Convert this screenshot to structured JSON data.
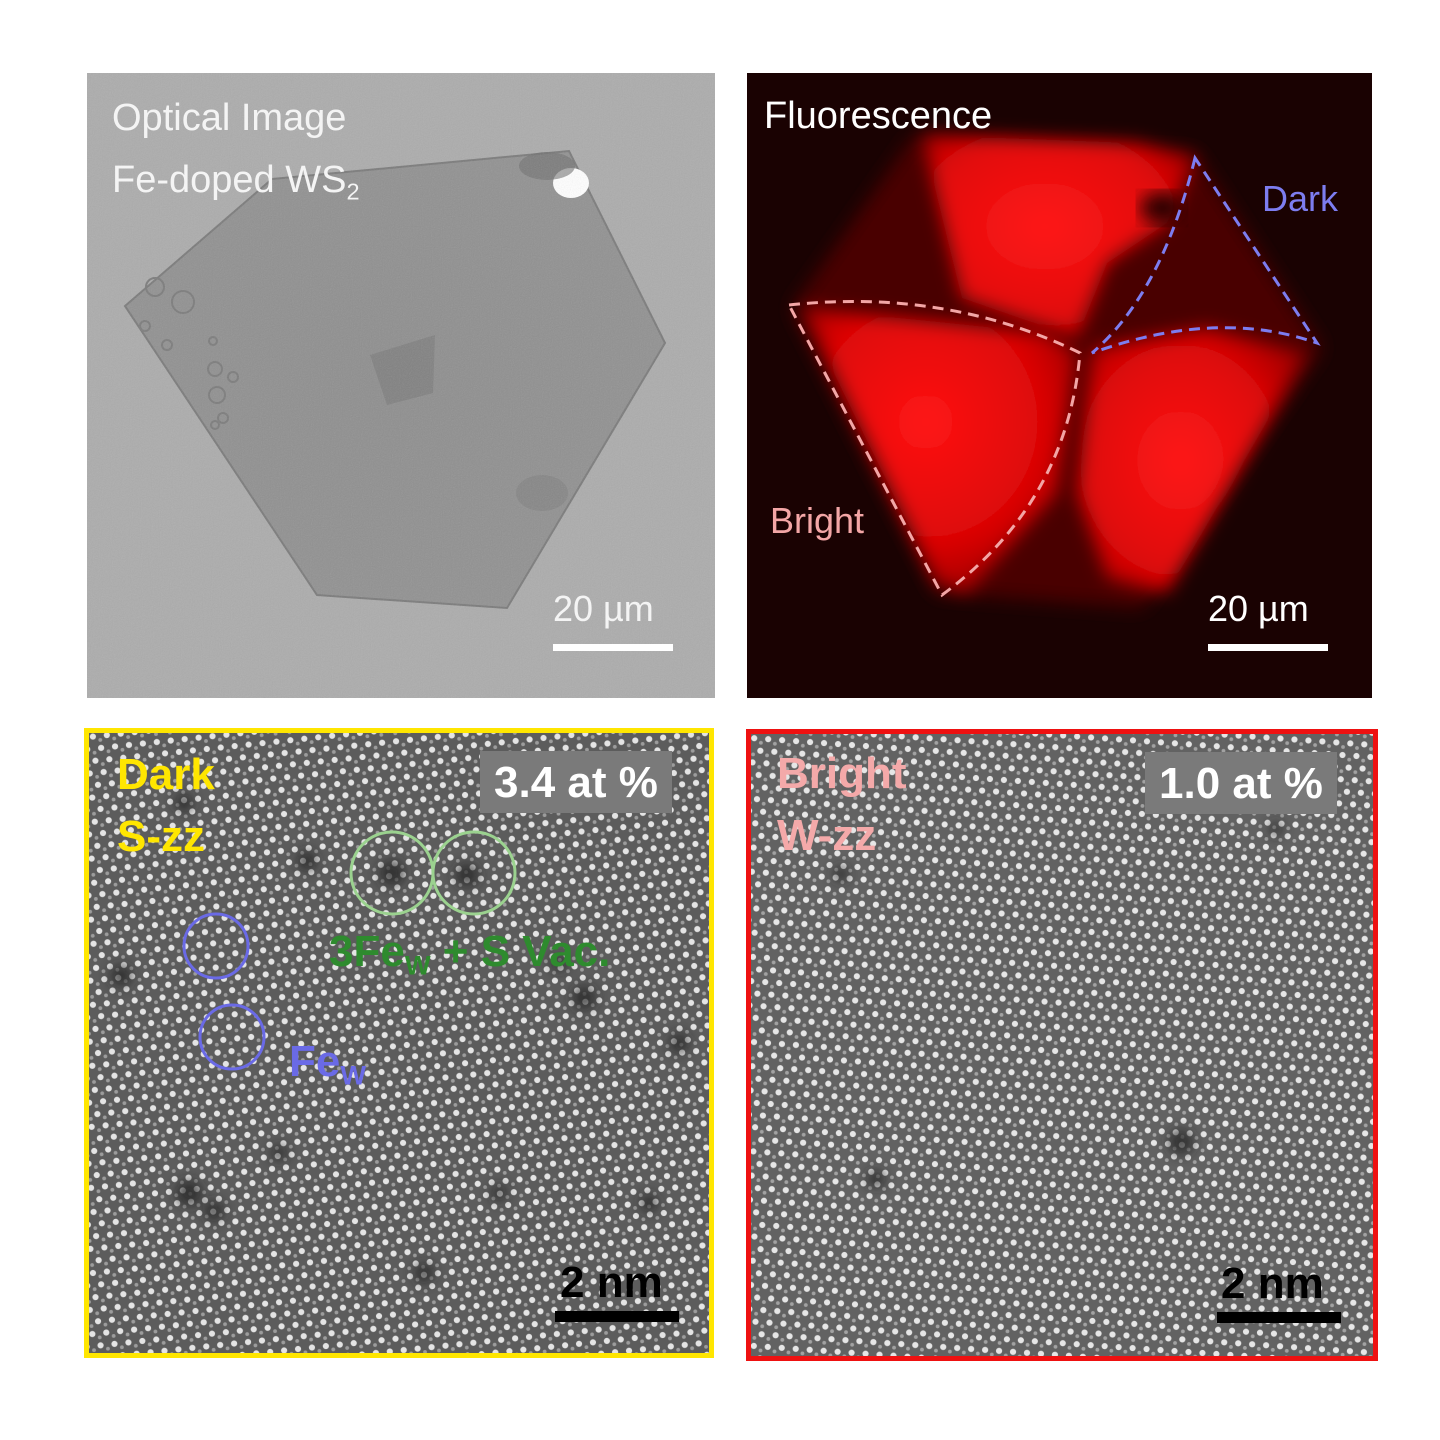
{
  "panels": {
    "optical": {
      "title_line1": "Optical Image",
      "title_line2_prefix": "Fe-doped WS",
      "title_line2_sub": "2",
      "scale_bar": "20 µm"
    },
    "fluorescence": {
      "title": "Fluorescence",
      "region_dark": "Dark",
      "region_bright": "Bright",
      "scale_bar": "20 µm"
    },
    "stem_dark": {
      "label_line1": "Dark",
      "label_line2": "S-zz",
      "concentration": "3.4 at %",
      "annotation_cluster_prefix": "3Fe",
      "annotation_cluster_sub": "W",
      "annotation_cluster_suffix": " + S Vac.",
      "annotation_single_prefix": "Fe",
      "annotation_single_sub": "W",
      "scale_bar": "2 nm"
    },
    "stem_bright": {
      "label_line1": "Bright",
      "label_line2": "W-zz",
      "concentration": "1.0 at %",
      "scale_bar": "2 nm"
    }
  },
  "colors": {
    "stem_dark_frame": "#ffe600",
    "stem_bright_frame": "#ee1111",
    "dark_region_dash": "#7d7df0",
    "bright_region_dash": "#f3a6a6",
    "cluster_annotation": "#2e8b2e",
    "single_annotation": "#6a6ae6",
    "bright_label": "#f4a9a9"
  }
}
